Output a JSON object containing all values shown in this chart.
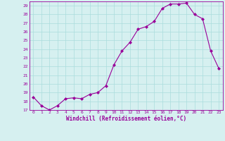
{
  "x": [
    0,
    1,
    2,
    3,
    4,
    5,
    6,
    7,
    8,
    9,
    10,
    11,
    12,
    13,
    14,
    15,
    16,
    17,
    18,
    19,
    20,
    21,
    22,
    23
  ],
  "y": [
    18.5,
    17.5,
    17.0,
    17.5,
    18.3,
    18.4,
    18.3,
    18.8,
    19.0,
    19.8,
    22.2,
    23.8,
    24.8,
    26.3,
    26.6,
    27.2,
    28.7,
    29.2,
    29.2,
    29.3,
    28.0,
    27.5,
    23.8,
    21.8
  ],
  "line_color": "#990099",
  "marker": "D",
  "marker_size": 2,
  "bg_color": "#d6f0f0",
  "grid_color": "#aadddd",
  "xlabel": "Windchill (Refroidissement éolien,°C)",
  "xlabel_color": "#990099",
  "tick_color": "#990099",
  "ylim": [
    17,
    29.5
  ],
  "yticks": [
    17,
    18,
    19,
    20,
    21,
    22,
    23,
    24,
    25,
    26,
    27,
    28,
    29
  ],
  "xlim": [
    -0.5,
    23.5
  ],
  "xticks": [
    0,
    1,
    2,
    3,
    4,
    5,
    6,
    7,
    8,
    9,
    10,
    11,
    12,
    13,
    14,
    15,
    16,
    17,
    18,
    19,
    20,
    21,
    22,
    23
  ],
  "tick_fontsize": 4.5,
  "xlabel_fontsize": 5.5
}
